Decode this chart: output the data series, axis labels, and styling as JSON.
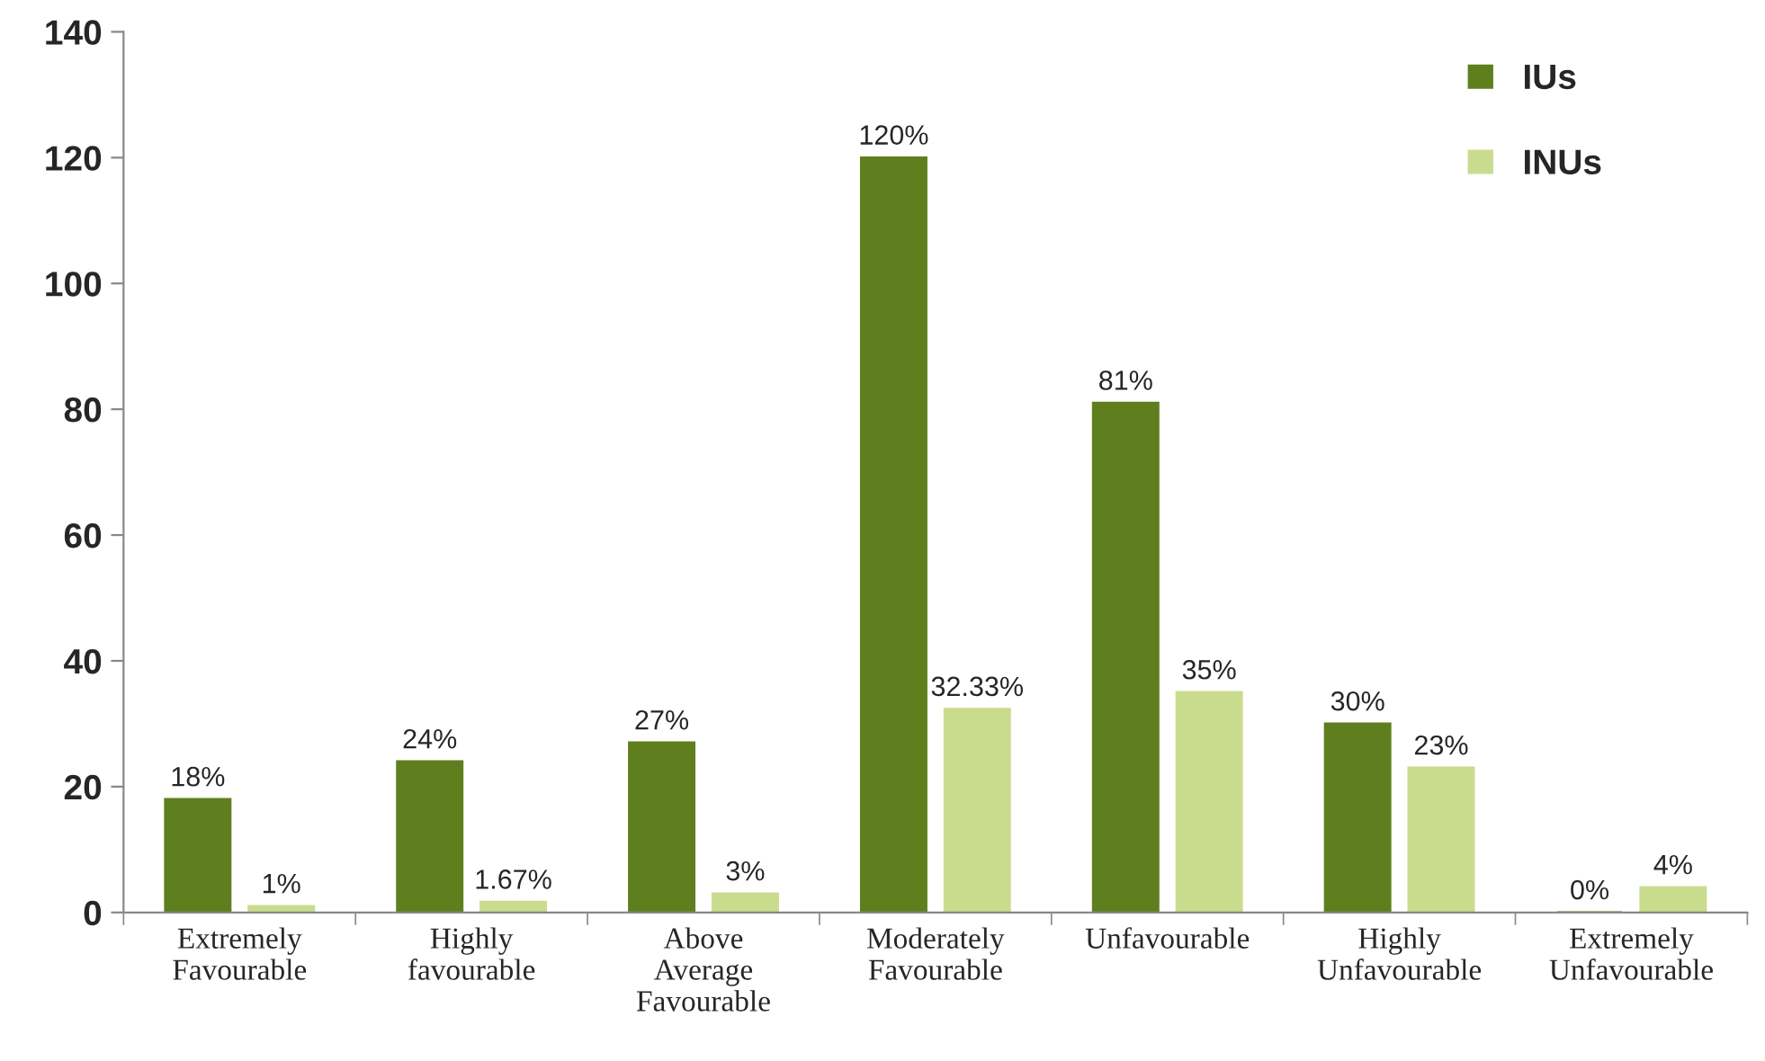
{
  "chart_data": {
    "type": "bar",
    "categories": [
      "Extremely Favourable",
      "Highly favourable",
      "Above Average Favourable",
      "Moderately Favourable",
      "Unfavourable",
      "Highly Unfavourable",
      "Extremely Unfavourable"
    ],
    "series": [
      {
        "name": "IUs",
        "color": "#5f7f1f",
        "values": [
          18,
          24,
          27,
          120,
          81,
          30,
          0
        ],
        "value_labels": [
          "18%",
          "24%",
          "27%",
          "120%",
          "81%",
          "30%",
          "0%"
        ]
      },
      {
        "name": "INUs",
        "color": "#c9dc8e",
        "values": [
          1,
          1.67,
          3,
          32.33,
          35,
          23,
          4
        ],
        "value_labels": [
          "1%",
          "1.67%",
          "3%",
          "32.33%",
          "35%",
          "23%",
          "4%"
        ]
      }
    ],
    "ylim": [
      0,
      140
    ],
    "yticks": [
      0,
      20,
      40,
      60,
      80,
      100,
      120,
      140
    ],
    "grid": false,
    "legend": "top right"
  }
}
